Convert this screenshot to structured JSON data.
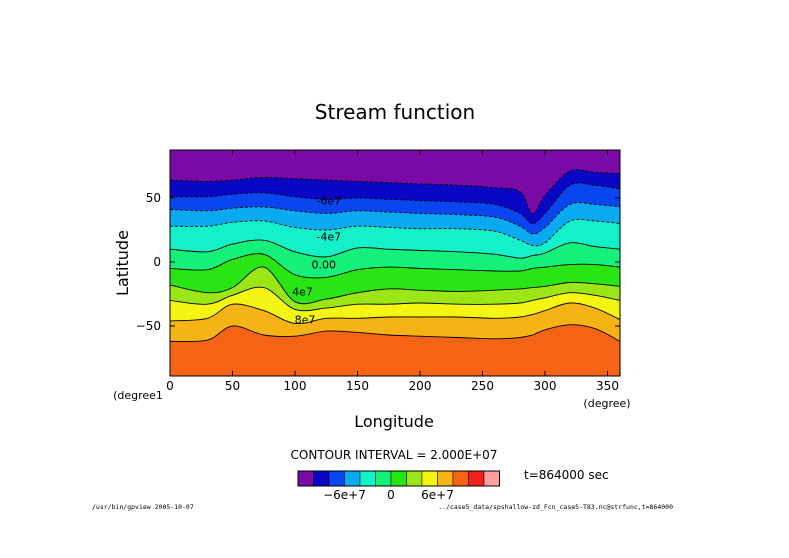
{
  "chart_data": {
    "type": "contour",
    "title": "Stream function",
    "xlabel": "Longitude",
    "ylabel": "Latitude",
    "x_unit": "(degree)",
    "y_unit": "(degree1",
    "xlim": [
      0,
      360
    ],
    "ylim": [
      -90,
      90
    ],
    "x_ticks": [
      {
        "value": 0,
        "label": "0"
      },
      {
        "value": 50,
        "label": "50"
      },
      {
        "value": 100,
        "label": "100"
      },
      {
        "value": 150,
        "label": "150"
      },
      {
        "value": 200,
        "label": "200"
      },
      {
        "value": 250,
        "label": "250"
      },
      {
        "value": 300,
        "label": "300"
      },
      {
        "value": 350,
        "label": "350"
      }
    ],
    "y_ticks": [
      {
        "value": 50,
        "label": "50"
      },
      {
        "value": 0,
        "label": "0"
      },
      {
        "value": -50,
        "label": "−50"
      }
    ],
    "x": [
      0,
      30,
      50,
      75,
      100,
      125,
      150,
      175,
      200,
      230,
      260,
      280,
      290,
      300,
      320,
      340,
      360
    ],
    "contour_levels": [
      {
        "value": -80000000.0,
        "lat": [
          64,
          63,
          64,
          66,
          65,
          64,
          63,
          62,
          61,
          60,
          58,
          55,
          38,
          52,
          71,
          70,
          69
        ]
      },
      {
        "value": -60000000.0,
        "lat": [
          51,
          51,
          53,
          54,
          51,
          49,
          50,
          49,
          48,
          47,
          45,
          38,
          30,
          38,
          60,
          60,
          57
        ]
      },
      {
        "value": -40000000.0,
        "lat": [
          41,
          40,
          42,
          43,
          40,
          38,
          40,
          39,
          38,
          37,
          35,
          28,
          22,
          27,
          45,
          45,
          43
        ]
      },
      {
        "value": -20000000.0,
        "lat": [
          28,
          28,
          31,
          32,
          27,
          25,
          28,
          27,
          26,
          26,
          24,
          17,
          13,
          15,
          32,
          32,
          30
        ]
      },
      {
        "value": 0,
        "lat": [
          10,
          8,
          14,
          17,
          8,
          4,
          11,
          10,
          9,
          8,
          6,
          3,
          5,
          7,
          15,
          12,
          10
        ]
      },
      {
        "value": 20000000.0,
        "lat": [
          -5,
          -6,
          2,
          6,
          -10,
          -12,
          -6,
          -4,
          -5,
          -6,
          -7,
          -7,
          -5,
          -4,
          -2,
          -2,
          -4
        ]
      },
      {
        "value": 40000000.0,
        "lat": [
          -18,
          -24,
          -20,
          -4,
          -31,
          -29,
          -24,
          -21,
          -22,
          -23,
          -22,
          -21,
          -20,
          -19,
          -16,
          -17,
          -19
        ]
      },
      {
        "value": 60000000.0,
        "lat": [
          -30,
          -33,
          -26,
          -20,
          -37,
          -36,
          -33,
          -33,
          -32,
          -33,
          -33,
          -32,
          -30,
          -28,
          -24,
          -26,
          -30
        ]
      },
      {
        "value": 80000000.0,
        "lat": [
          -46,
          -44,
          -33,
          -38,
          -48,
          -44,
          -44,
          -43,
          -43,
          -43,
          -44,
          -43,
          -41,
          -38,
          -32,
          -36,
          -45
        ]
      },
      {
        "value": 100000000.0,
        "lat": [
          -62,
          -61,
          -50,
          -57,
          -58,
          -54,
          -55,
          -57,
          -58,
          -59,
          -60,
          -59,
          -57,
          -53,
          -49,
          -52,
          -62
        ]
      }
    ],
    "contour_labels": [
      {
        "text": "-6e7",
        "lon": 127,
        "lat": 48
      },
      {
        "text": "-4e7",
        "lon": 127,
        "lat": 20
      },
      {
        "text": "0.00",
        "lon": 123,
        "lat": -2
      },
      {
        "text": "4e7",
        "lon": 106,
        "lat": -23
      },
      {
        "text": "8e7",
        "lon": 108,
        "lat": -45
      }
    ],
    "color_bands": [
      "#7a0aa6",
      "#0a06c6",
      "#0a46f0",
      "#0aaaf0",
      "#14f0c8",
      "#14f07a",
      "#28e614",
      "#9be614",
      "#f5f514",
      "#f5b414",
      "#f56414",
      "#f51e1e",
      "#ffa0a0"
    ],
    "contour_interval_text": "CONTOUR INTERVAL = 2.000E+07",
    "colorbar_labels": [
      {
        "text": "−6e+7",
        "index": 3
      },
      {
        "text": "0",
        "index": 6
      },
      {
        "text": "6e+7",
        "index": 9
      }
    ],
    "time_text": "t=864000 sec",
    "footer_left": "/usr/bin/gpview  2005-10-07",
    "footer_right": "../case5_data/spshallow-zd_Fcn_case5-T83.nc@strfunc,t=864000"
  }
}
